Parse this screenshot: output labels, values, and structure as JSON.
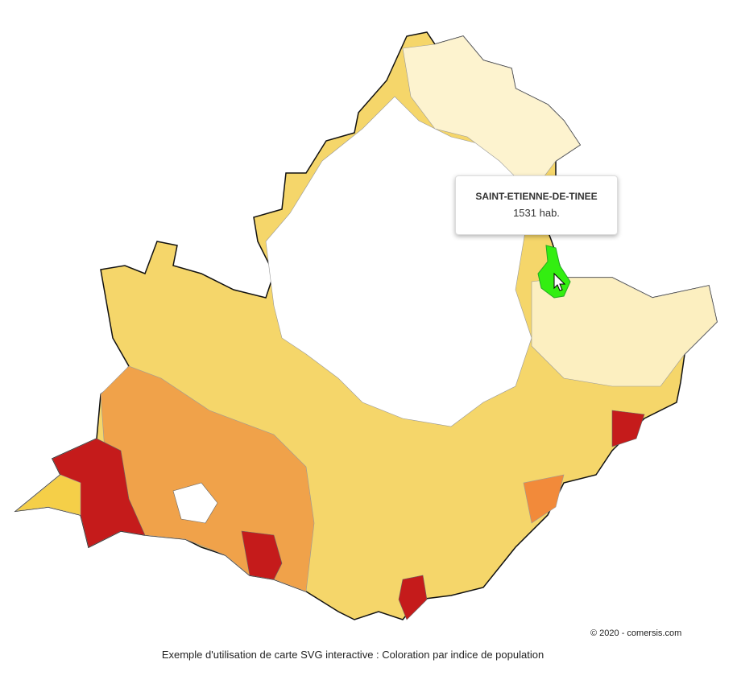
{
  "tooltip": {
    "title": "SAINT-ETIENNE-DE-TINEE",
    "text": "1531 hab."
  },
  "copyright": "© 2020 - comersis.com",
  "caption": "Exemple d'utilisation de carte SVG interactive : Coloration par indice de population"
}
